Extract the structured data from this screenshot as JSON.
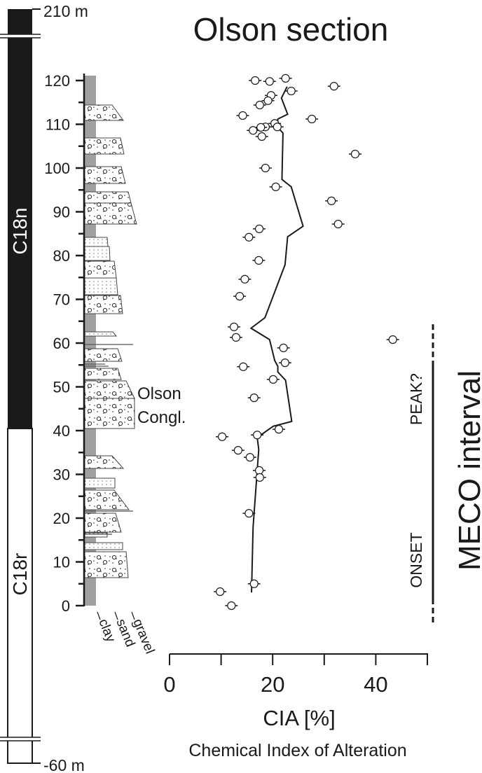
{
  "chart_data": {
    "type": "scatter",
    "title": "Olson section",
    "xlabel": "CIA [%]",
    "xlabel_sub": "Chemical Index of Alteration",
    "xlim": [
      0,
      50
    ],
    "ylim": [
      0,
      120
    ],
    "x_ticks": [
      0,
      10,
      20,
      30,
      40,
      50
    ],
    "x_tick_labels": [
      "0",
      "20",
      "40"
    ],
    "x_tick_label_values": [
      0,
      20,
      40
    ],
    "y_tick_labels": [
      "0",
      "10",
      "20",
      "30",
      "40",
      "50",
      "60",
      "70",
      "80",
      "90",
      "100",
      "110",
      "120"
    ],
    "y_tick_label_values": [
      0,
      10,
      20,
      30,
      40,
      50,
      60,
      70,
      80,
      90,
      100,
      110,
      120
    ],
    "y_minor_step": 5,
    "grid": false,
    "series": [
      {
        "kind": "points",
        "marker": "open-circle-with-error-bar",
        "points": [
          [
            16.6,
            120.0
          ],
          [
            19.4,
            119.8
          ],
          [
            22.5,
            120.5
          ],
          [
            31.9,
            118.7
          ],
          [
            23.6,
            117.6
          ],
          [
            19.7,
            116.6
          ],
          [
            19.1,
            115.4
          ],
          [
            17.5,
            114.4
          ],
          [
            14.2,
            112.0
          ],
          [
            27.6,
            111.2
          ],
          [
            20.4,
            110.2
          ],
          [
            20.9,
            109.4
          ],
          [
            18.6,
            109.4
          ],
          [
            17.7,
            109.3
          ],
          [
            16.2,
            108.6
          ],
          [
            17.9,
            107.2
          ],
          [
            36.0,
            103.2
          ],
          [
            18.6,
            100.0
          ],
          [
            20.6,
            95.7
          ],
          [
            31.4,
            92.5
          ],
          [
            32.7,
            87.2
          ],
          [
            17.4,
            86.1
          ],
          [
            15.4,
            84.2
          ],
          [
            17.3,
            78.9
          ],
          [
            14.6,
            74.6
          ],
          [
            13.6,
            70.7
          ],
          [
            12.5,
            63.7
          ],
          [
            12.9,
            61.3
          ],
          [
            43.3,
            60.8
          ],
          [
            22.1,
            58.9
          ],
          [
            22.4,
            55.5
          ],
          [
            14.3,
            54.6
          ],
          [
            20.1,
            51.7
          ],
          [
            16.4,
            47.5
          ],
          [
            21.2,
            40.3
          ],
          [
            10.2,
            38.6
          ],
          [
            17.0,
            39.0
          ],
          [
            13.3,
            35.5
          ],
          [
            15.6,
            33.9
          ],
          [
            17.4,
            30.9
          ],
          [
            17.5,
            29.3
          ],
          [
            15.4,
            21.1
          ],
          [
            16.4,
            5.0
          ],
          [
            9.8,
            3.2
          ],
          [
            12.0,
            0.0
          ]
        ]
      },
      {
        "kind": "line",
        "points": [
          [
            22.8,
            118.6
          ],
          [
            21.7,
            116.0
          ],
          [
            22.9,
            112.3
          ],
          [
            21.0,
            111.2
          ],
          [
            20.9,
            109.4
          ],
          [
            22.0,
            108.0
          ],
          [
            21.8,
            97.4
          ],
          [
            23.6,
            95.7
          ],
          [
            25.9,
            86.7
          ],
          [
            22.9,
            84.3
          ],
          [
            22.4,
            77.9
          ],
          [
            18.5,
            65.8
          ],
          [
            15.8,
            63.4
          ],
          [
            19.4,
            60.8
          ],
          [
            20.4,
            56.0
          ],
          [
            21.0,
            54.7
          ],
          [
            21.0,
            53.4
          ],
          [
            22.5,
            51.5
          ],
          [
            23.7,
            42.1
          ],
          [
            20.1,
            41.0
          ],
          [
            17.0,
            38.4
          ],
          [
            17.3,
            35.7
          ],
          [
            16.2,
            17.9
          ],
          [
            15.9,
            3.0
          ]
        ]
      }
    ],
    "magnetostratigraphy": {
      "top_label": "210 m",
      "bottom_label": "-60 m",
      "chrons": [
        {
          "name": "C18n",
          "polarity": "normal",
          "color": "#1a1a1a",
          "from_m": 40,
          "to_m": 210
        },
        {
          "name": "C18r",
          "polarity": "reversed",
          "color": "#ffffff",
          "from_m": -60,
          "to_m": 40
        }
      ]
    },
    "lithology": {
      "grain_size_labels": [
        "clay",
        "sand",
        "gravel"
      ],
      "unit_label": [
        "Olson",
        "Congl."
      ],
      "clay_color": "#a0a0a0"
    },
    "annotations": {
      "interval_label": "MECO interval",
      "onset_label": "ONSET",
      "peak_label": "PEAK?",
      "interval_solid_m": [
        1.6,
        55.2
      ],
      "interval_dashed_m": [
        -4,
        64.3
      ]
    }
  }
}
